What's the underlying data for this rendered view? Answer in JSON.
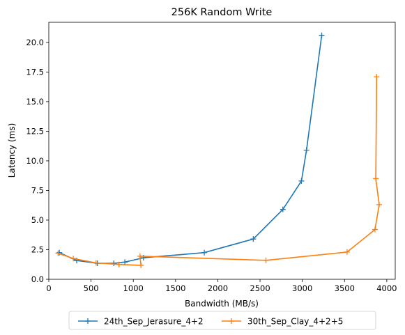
{
  "chart_data": {
    "type": "line",
    "title": "256K  Random Write",
    "xlabel": "Bandwidth (MB/s)",
    "ylabel": "Latency (ms)",
    "xlim": [
      0,
      4100
    ],
    "ylim": [
      0,
      21.7
    ],
    "xticks": [
      0,
      500,
      1000,
      1500,
      2000,
      2500,
      3000,
      3500,
      4000
    ],
    "xtick_labels": [
      "0",
      "500",
      "1000",
      "1500",
      "2000",
      "2500",
      "3000",
      "3500",
      "4000"
    ],
    "yticks": [
      0,
      2.5,
      5,
      7.5,
      10,
      12.5,
      15,
      17.5,
      20
    ],
    "ytick_labels": [
      "0.0",
      "2.5",
      "5.0",
      "7.5",
      "10.0",
      "12.5",
      "15.0",
      "17.5",
      "20.0"
    ],
    "grid": false,
    "legend_position": "bottom-center",
    "series": [
      {
        "name": "24th_Sep_Jerasure_4+2",
        "color": "#1f77b4",
        "marker": "+",
        "x": [
          125,
          330,
          575,
          770,
          900,
          1120,
          1840,
          2420,
          2770,
          2990,
          3050,
          3230
        ],
        "y": [
          2.25,
          1.58,
          1.35,
          1.35,
          1.45,
          1.82,
          2.25,
          3.4,
          5.9,
          8.3,
          10.9,
          20.6
        ]
      },
      {
        "name": "30th_Sep_Clay_4+2+5",
        "color": "#ff7f0e",
        "marker": "+",
        "x": [
          110,
          290,
          560,
          830,
          1090,
          1080,
          2570,
          3530,
          3860,
          3910,
          3870,
          3880
        ],
        "y": [
          2.2,
          1.75,
          1.38,
          1.25,
          1.18,
          1.95,
          1.6,
          2.3,
          4.2,
          6.3,
          8.5,
          17.1
        ]
      }
    ]
  }
}
